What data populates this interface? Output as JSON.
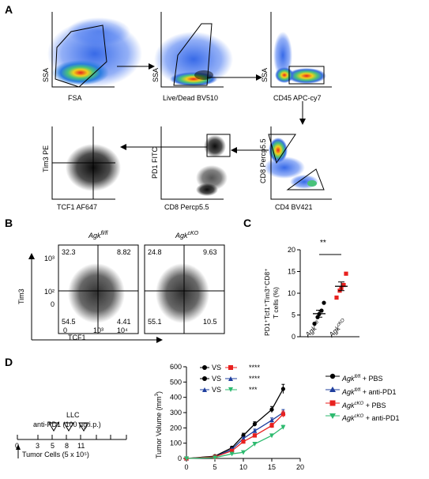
{
  "panels": {
    "A": "A",
    "B": "B",
    "C": "C",
    "D": "D"
  },
  "panelA": {
    "plots": [
      {
        "ylabel": "SSA",
        "xlabel": "FSA"
      },
      {
        "ylabel": "SSA",
        "xlabel": "Live/Dead BV510"
      },
      {
        "ylabel": "SSA",
        "xlabel": "CD45 APC-cy7"
      },
      {
        "ylabel": "Tim3 PE",
        "xlabel": "TCF1 AF647"
      },
      {
        "ylabel": "PD1 FITC",
        "xlabel": "CD8 Percp5.5"
      },
      {
        "ylabel": "CD8 Percp5.5",
        "xlabel": "CD4 BV421"
      }
    ]
  },
  "panelB": {
    "titles": [
      "Agk",
      "Agk"
    ],
    "title_sups": [
      "fl/fl",
      "cKO"
    ],
    "ylabel": "Tim3",
    "xlabel": "TCF1",
    "yticks": [
      "10³",
      "10²",
      "0"
    ],
    "xticks": [
      "0",
      "10³",
      "10⁴"
    ],
    "quadrants": [
      {
        "q1": "32.3",
        "q2": "8.82",
        "q3": "54.5",
        "q4": "4.41"
      },
      {
        "q1": "24.8",
        "q2": "9.63",
        "q3": "55.1",
        "q4": "10.5"
      }
    ]
  },
  "panelC": {
    "ylabel_line1": "PD1⁺Tcf1⁺Tim3⁺CD8⁺",
    "ylabel_line2": "T cells (%)",
    "significance": "**",
    "categories": [
      "Agk",
      "Agk"
    ],
    "category_sups": [
      "fl/fl",
      "cKO"
    ],
    "yticks": [
      "0",
      "5",
      "10",
      "15",
      "20"
    ]
  },
  "panelD": {
    "schedule_title": "LLC",
    "schedule_treatment": "anti-PD1 (100 µg.i.p.)",
    "schedule_ticks": [
      "0",
      "3",
      "5",
      "8",
      "11"
    ],
    "schedule_note": "Tumor Cells (5 x 10⁵)",
    "comparisons": [
      {
        "label": "VS",
        "stars": "****"
      },
      {
        "label": "VS",
        "stars": "****"
      },
      {
        "label": "VS",
        "stars": "***"
      }
    ],
    "legend_prefix": "Agk",
    "legend_sups": [
      "fl/fl",
      "fl/fl",
      "cKO",
      "cKO"
    ],
    "legend_suffixes": [
      " + PBS",
      " + anti-PD1",
      " + PBS",
      " + anti-PD1"
    ]
  },
  "chart_data": [
    {
      "type": "scatter",
      "panel": "C",
      "categories": [
        "Agk fl/fl",
        "Agk cKO"
      ],
      "series": [
        {
          "name": "Agk fl/fl",
          "values": [
            3.0,
            4.5,
            5.2,
            6.0,
            7.8
          ],
          "mean": 5.3,
          "sem": 0.8
        },
        {
          "name": "Agk cKO",
          "values": [
            9.0,
            10.6,
            11.2,
            11.9,
            14.5
          ],
          "mean": 11.6,
          "sem": 1.0
        }
      ],
      "ylabel": "PD1⁺Tcf1⁺Tim3⁺CD8⁺ T cells (%)",
      "ylim": [
        0,
        20
      ],
      "colors": [
        "#000000",
        "#e8211f"
      ]
    },
    {
      "type": "line",
      "panel": "D",
      "x": [
        0,
        5,
        8,
        10,
        12,
        15,
        17
      ],
      "series": [
        {
          "name": "Agk fl/fl + PBS",
          "values": [
            0,
            15,
            70,
            150,
            225,
            320,
            455
          ],
          "errors": [
            0,
            5,
            10,
            15,
            15,
            20,
            30
          ],
          "color": "#000000",
          "marker": "circle"
        },
        {
          "name": "Agk fl/fl + anti-PD1",
          "values": [
            0,
            10,
            60,
            130,
            180,
            250,
            300
          ],
          "errors": [
            0,
            4,
            8,
            10,
            12,
            15,
            20
          ],
          "color": "#1f3f9e",
          "marker": "triangle-up"
        },
        {
          "name": "Agk cKO + PBS",
          "values": [
            0,
            10,
            50,
            110,
            150,
            215,
            290
          ],
          "errors": [
            0,
            4,
            8,
            10,
            12,
            15,
            20
          ],
          "color": "#e8211f",
          "marker": "square"
        },
        {
          "name": "Agk cKO + anti-PD1",
          "values": [
            0,
            5,
            30,
            40,
            95,
            150,
            205
          ],
          "errors": [
            0,
            3,
            5,
            6,
            8,
            10,
            12
          ],
          "color": "#2dba6f",
          "marker": "triangle-down"
        }
      ],
      "ylabel": "Tumor Volume (mm3)",
      "xlim": [
        0,
        20
      ],
      "ylim": [
        0,
        600
      ],
      "xticks": [
        0,
        5,
        10,
        15,
        20
      ],
      "yticks": [
        0,
        100,
        200,
        300,
        400,
        500,
        600
      ]
    }
  ]
}
